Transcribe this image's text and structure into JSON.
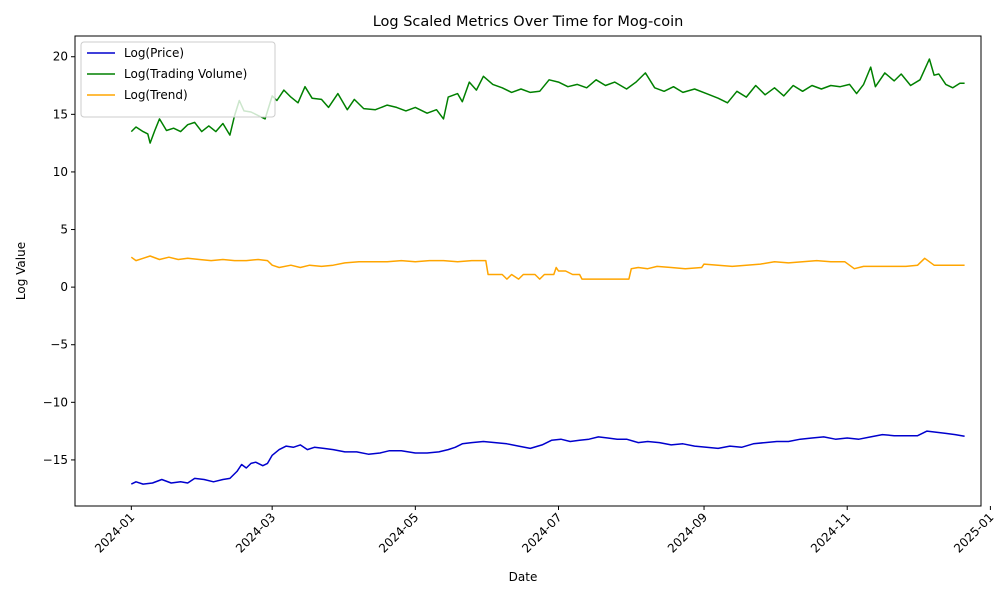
{
  "chart_data": {
    "type": "line",
    "title": "Log Scaled Metrics Over Time for Mog-coin",
    "xlabel": "Date",
    "ylabel": "Log Value",
    "xlim": [
      "2023-12-08",
      "2024-12-28"
    ],
    "ylim": [
      -19,
      21.8
    ],
    "grid": false,
    "legend_position": "top-left",
    "x_ticks": [
      "2024-01",
      "2024-03",
      "2024-05",
      "2024-07",
      "2024-09",
      "2024-11",
      "2025-01"
    ],
    "y_ticks": [
      "20",
      "15",
      "10",
      "5",
      "0",
      "−5",
      "−10",
      "−15"
    ],
    "y_tick_values": [
      20,
      15,
      10,
      5,
      0,
      -5,
      -10,
      -15
    ],
    "series": [
      {
        "name": "Log(Price)",
        "color": "#0000cd",
        "points": [
          [
            "2024-01-01",
            -17.1
          ],
          [
            "2024-01-03",
            -16.9
          ],
          [
            "2024-01-06",
            -17.1
          ],
          [
            "2024-01-10",
            -17.0
          ],
          [
            "2024-01-14",
            -16.7
          ],
          [
            "2024-01-18",
            -17.0
          ],
          [
            "2024-01-22",
            -16.9
          ],
          [
            "2024-01-25",
            -17.0
          ],
          [
            "2024-01-28",
            -16.6
          ],
          [
            "2024-02-01",
            -16.7
          ],
          [
            "2024-02-05",
            -16.9
          ],
          [
            "2024-02-09",
            -16.7
          ],
          [
            "2024-02-12",
            -16.6
          ],
          [
            "2024-02-15",
            -16.0
          ],
          [
            "2024-02-17",
            -15.4
          ],
          [
            "2024-02-19",
            -15.7
          ],
          [
            "2024-02-21",
            -15.3
          ],
          [
            "2024-02-23",
            -15.2
          ],
          [
            "2024-02-26",
            -15.5
          ],
          [
            "2024-02-28",
            -15.3
          ],
          [
            "2024-03-01",
            -14.6
          ],
          [
            "2024-03-04",
            -14.1
          ],
          [
            "2024-03-07",
            -13.8
          ],
          [
            "2024-03-10",
            -13.9
          ],
          [
            "2024-03-13",
            -13.7
          ],
          [
            "2024-03-16",
            -14.1
          ],
          [
            "2024-03-19",
            -13.9
          ],
          [
            "2024-03-23",
            -14.0
          ],
          [
            "2024-03-27",
            -14.1
          ],
          [
            "2024-04-01",
            -14.3
          ],
          [
            "2024-04-06",
            -14.3
          ],
          [
            "2024-04-11",
            -14.5
          ],
          [
            "2024-04-16",
            -14.4
          ],
          [
            "2024-04-20",
            -14.2
          ],
          [
            "2024-04-25",
            -14.2
          ],
          [
            "2024-05-01",
            -14.4
          ],
          [
            "2024-05-06",
            -14.4
          ],
          [
            "2024-05-11",
            -14.3
          ],
          [
            "2024-05-15",
            -14.1
          ],
          [
            "2024-05-18",
            -13.9
          ],
          [
            "2024-05-21",
            -13.6
          ],
          [
            "2024-05-25",
            -13.5
          ],
          [
            "2024-05-30",
            -13.4
          ],
          [
            "2024-06-04",
            -13.5
          ],
          [
            "2024-06-09",
            -13.6
          ],
          [
            "2024-06-14",
            -13.8
          ],
          [
            "2024-06-19",
            -14.0
          ],
          [
            "2024-06-24",
            -13.7
          ],
          [
            "2024-06-28",
            -13.3
          ],
          [
            "2024-07-02",
            -13.2
          ],
          [
            "2024-07-06",
            -13.4
          ],
          [
            "2024-07-10",
            -13.3
          ],
          [
            "2024-07-14",
            -13.2
          ],
          [
            "2024-07-18",
            -13.0
          ],
          [
            "2024-07-22",
            -13.1
          ],
          [
            "2024-07-26",
            -13.2
          ],
          [
            "2024-07-30",
            -13.2
          ],
          [
            "2024-08-04",
            -13.5
          ],
          [
            "2024-08-08",
            -13.4
          ],
          [
            "2024-08-13",
            -13.5
          ],
          [
            "2024-08-18",
            -13.7
          ],
          [
            "2024-08-23",
            -13.6
          ],
          [
            "2024-08-28",
            -13.8
          ],
          [
            "2024-09-02",
            -13.9
          ],
          [
            "2024-09-07",
            -14.0
          ],
          [
            "2024-09-12",
            -13.8
          ],
          [
            "2024-09-17",
            -13.9
          ],
          [
            "2024-09-22",
            -13.6
          ],
          [
            "2024-09-27",
            -13.5
          ],
          [
            "2024-10-02",
            -13.4
          ],
          [
            "2024-10-07",
            -13.4
          ],
          [
            "2024-10-12",
            -13.2
          ],
          [
            "2024-10-17",
            -13.1
          ],
          [
            "2024-10-22",
            -13.0
          ],
          [
            "2024-10-27",
            -13.2
          ],
          [
            "2024-11-01",
            -13.1
          ],
          [
            "2024-11-06",
            -13.2
          ],
          [
            "2024-11-11",
            -13.0
          ],
          [
            "2024-11-16",
            -12.8
          ],
          [
            "2024-11-21",
            -12.9
          ],
          [
            "2024-11-26",
            -12.9
          ],
          [
            "2024-12-01",
            -12.9
          ],
          [
            "2024-12-05",
            -12.5
          ],
          [
            "2024-12-09",
            -12.6
          ],
          [
            "2024-12-13",
            -12.7
          ],
          [
            "2024-12-17",
            -12.8
          ],
          [
            "2024-12-21",
            -12.95
          ]
        ]
      },
      {
        "name": "Log(Trading Volume)",
        "color": "#008000",
        "points": [
          [
            "2024-01-01",
            13.5
          ],
          [
            "2024-01-03",
            13.9
          ],
          [
            "2024-01-06",
            13.5
          ],
          [
            "2024-01-08",
            13.3
          ],
          [
            "2024-01-09",
            12.5
          ],
          [
            "2024-01-11",
            13.6
          ],
          [
            "2024-01-13",
            14.6
          ],
          [
            "2024-01-16",
            13.6
          ],
          [
            "2024-01-19",
            13.8
          ],
          [
            "2024-01-22",
            13.5
          ],
          [
            "2024-01-25",
            14.1
          ],
          [
            "2024-01-28",
            14.3
          ],
          [
            "2024-01-31",
            13.5
          ],
          [
            "2024-02-03",
            14.0
          ],
          [
            "2024-02-06",
            13.5
          ],
          [
            "2024-02-09",
            14.2
          ],
          [
            "2024-02-12",
            13.2
          ],
          [
            "2024-02-14",
            14.9
          ],
          [
            "2024-02-16",
            16.2
          ],
          [
            "2024-02-18",
            15.3
          ],
          [
            "2024-02-21",
            15.2
          ],
          [
            "2024-02-24",
            14.9
          ],
          [
            "2024-02-27",
            14.6
          ],
          [
            "2024-03-01",
            16.6
          ],
          [
            "2024-03-03",
            16.2
          ],
          [
            "2024-03-06",
            17.1
          ],
          [
            "2024-03-09",
            16.5
          ],
          [
            "2024-03-12",
            16.0
          ],
          [
            "2024-03-15",
            17.4
          ],
          [
            "2024-03-18",
            16.4
          ],
          [
            "2024-03-22",
            16.3
          ],
          [
            "2024-03-25",
            15.6
          ],
          [
            "2024-03-29",
            16.8
          ],
          [
            "2024-04-02",
            15.4
          ],
          [
            "2024-04-05",
            16.3
          ],
          [
            "2024-04-09",
            15.5
          ],
          [
            "2024-04-14",
            15.4
          ],
          [
            "2024-04-19",
            15.8
          ],
          [
            "2024-04-23",
            15.6
          ],
          [
            "2024-04-27",
            15.3
          ],
          [
            "2024-05-01",
            15.6
          ],
          [
            "2024-05-06",
            15.1
          ],
          [
            "2024-05-10",
            15.4
          ],
          [
            "2024-05-13",
            14.6
          ],
          [
            "2024-05-15",
            16.5
          ],
          [
            "2024-05-19",
            16.8
          ],
          [
            "2024-05-21",
            16.1
          ],
          [
            "2024-05-24",
            17.8
          ],
          [
            "2024-05-27",
            17.1
          ],
          [
            "2024-05-30",
            18.3
          ],
          [
            "2024-06-03",
            17.6
          ],
          [
            "2024-06-07",
            17.3
          ],
          [
            "2024-06-11",
            16.9
          ],
          [
            "2024-06-15",
            17.2
          ],
          [
            "2024-06-19",
            16.9
          ],
          [
            "2024-06-23",
            17.0
          ],
          [
            "2024-06-27",
            18.0
          ],
          [
            "2024-07-01",
            17.8
          ],
          [
            "2024-07-05",
            17.4
          ],
          [
            "2024-07-09",
            17.6
          ],
          [
            "2024-07-13",
            17.3
          ],
          [
            "2024-07-17",
            18.0
          ],
          [
            "2024-07-21",
            17.5
          ],
          [
            "2024-07-25",
            17.8
          ],
          [
            "2024-07-30",
            17.2
          ],
          [
            "2024-08-03",
            17.8
          ],
          [
            "2024-08-07",
            18.6
          ],
          [
            "2024-08-11",
            17.3
          ],
          [
            "2024-08-15",
            17.0
          ],
          [
            "2024-08-19",
            17.4
          ],
          [
            "2024-08-23",
            16.9
          ],
          [
            "2024-08-28",
            17.2
          ],
          [
            "2024-09-02",
            16.8
          ],
          [
            "2024-09-07",
            16.4
          ],
          [
            "2024-09-11",
            16.0
          ],
          [
            "2024-09-15",
            17.0
          ],
          [
            "2024-09-19",
            16.5
          ],
          [
            "2024-09-23",
            17.5
          ],
          [
            "2024-09-27",
            16.7
          ],
          [
            "2024-10-01",
            17.3
          ],
          [
            "2024-10-05",
            16.6
          ],
          [
            "2024-10-09",
            17.5
          ],
          [
            "2024-10-13",
            17.0
          ],
          [
            "2024-10-17",
            17.5
          ],
          [
            "2024-10-21",
            17.2
          ],
          [
            "2024-10-25",
            17.5
          ],
          [
            "2024-10-29",
            17.4
          ],
          [
            "2024-11-02",
            17.6
          ],
          [
            "2024-11-05",
            16.8
          ],
          [
            "2024-11-08",
            17.6
          ],
          [
            "2024-11-11",
            19.1
          ],
          [
            "2024-11-13",
            17.4
          ],
          [
            "2024-11-17",
            18.6
          ],
          [
            "2024-11-21",
            17.9
          ],
          [
            "2024-11-24",
            18.5
          ],
          [
            "2024-11-28",
            17.5
          ],
          [
            "2024-12-02",
            18.0
          ],
          [
            "2024-12-04",
            18.9
          ],
          [
            "2024-12-06",
            19.8
          ],
          [
            "2024-12-08",
            18.4
          ],
          [
            "2024-12-10",
            18.5
          ],
          [
            "2024-12-13",
            17.6
          ],
          [
            "2024-12-16",
            17.3
          ],
          [
            "2024-12-19",
            17.7
          ],
          [
            "2024-12-21",
            17.7
          ]
        ]
      },
      {
        "name": "Log(Trend)",
        "color": "#ffa500",
        "points": [
          [
            "2024-01-01",
            2.6
          ],
          [
            "2024-01-03",
            2.3
          ],
          [
            "2024-01-06",
            2.5
          ],
          [
            "2024-01-09",
            2.7
          ],
          [
            "2024-01-13",
            2.4
          ],
          [
            "2024-01-17",
            2.6
          ],
          [
            "2024-01-21",
            2.4
          ],
          [
            "2024-01-25",
            2.5
          ],
          [
            "2024-01-30",
            2.4
          ],
          [
            "2024-02-04",
            2.3
          ],
          [
            "2024-02-09",
            2.4
          ],
          [
            "2024-02-14",
            2.3
          ],
          [
            "2024-02-19",
            2.3
          ],
          [
            "2024-02-24",
            2.4
          ],
          [
            "2024-02-28",
            2.3
          ],
          [
            "2024-03-01",
            1.9
          ],
          [
            "2024-03-04",
            1.7
          ],
          [
            "2024-03-09",
            1.9
          ],
          [
            "2024-03-13",
            1.7
          ],
          [
            "2024-03-17",
            1.9
          ],
          [
            "2024-03-22",
            1.8
          ],
          [
            "2024-03-27",
            1.9
          ],
          [
            "2024-04-01",
            2.1
          ],
          [
            "2024-04-07",
            2.2
          ],
          [
            "2024-04-13",
            2.2
          ],
          [
            "2024-04-19",
            2.2
          ],
          [
            "2024-04-25",
            2.3
          ],
          [
            "2024-05-01",
            2.2
          ],
          [
            "2024-05-07",
            2.3
          ],
          [
            "2024-05-13",
            2.3
          ],
          [
            "2024-05-19",
            2.2
          ],
          [
            "2024-05-25",
            2.3
          ],
          [
            "2024-05-31",
            2.3
          ],
          [
            "2024-06-01",
            1.1
          ],
          [
            "2024-06-07",
            1.1
          ],
          [
            "2024-06-09",
            0.7
          ],
          [
            "2024-06-11",
            1.1
          ],
          [
            "2024-06-14",
            0.7
          ],
          [
            "2024-06-16",
            1.1
          ],
          [
            "2024-06-21",
            1.1
          ],
          [
            "2024-06-23",
            0.7
          ],
          [
            "2024-06-25",
            1.1
          ],
          [
            "2024-06-29",
            1.1
          ],
          [
            "2024-06-30",
            1.7
          ],
          [
            "2024-07-01",
            1.4
          ],
          [
            "2024-07-04",
            1.4
          ],
          [
            "2024-07-07",
            1.1
          ],
          [
            "2024-07-10",
            1.1
          ],
          [
            "2024-07-11",
            0.7
          ],
          [
            "2024-07-31",
            0.7
          ],
          [
            "2024-08-01",
            1.6
          ],
          [
            "2024-08-04",
            1.7
          ],
          [
            "2024-08-08",
            1.6
          ],
          [
            "2024-08-12",
            1.8
          ],
          [
            "2024-08-18",
            1.7
          ],
          [
            "2024-08-24",
            1.6
          ],
          [
            "2024-08-31",
            1.7
          ],
          [
            "2024-09-01",
            2.0
          ],
          [
            "2024-09-07",
            1.9
          ],
          [
            "2024-09-13",
            1.8
          ],
          [
            "2024-09-19",
            1.9
          ],
          [
            "2024-09-25",
            2.0
          ],
          [
            "2024-10-01",
            2.2
          ],
          [
            "2024-10-07",
            2.1
          ],
          [
            "2024-10-13",
            2.2
          ],
          [
            "2024-10-19",
            2.3
          ],
          [
            "2024-10-25",
            2.2
          ],
          [
            "2024-10-31",
            2.2
          ],
          [
            "2024-11-04",
            1.6
          ],
          [
            "2024-11-08",
            1.8
          ],
          [
            "2024-11-14",
            1.8
          ],
          [
            "2024-11-20",
            1.8
          ],
          [
            "2024-11-26",
            1.8
          ],
          [
            "2024-12-01",
            1.9
          ],
          [
            "2024-12-04",
            2.5
          ],
          [
            "2024-12-08",
            1.9
          ],
          [
            "2024-12-14",
            1.9
          ],
          [
            "2024-12-21",
            1.9
          ]
        ]
      }
    ]
  }
}
